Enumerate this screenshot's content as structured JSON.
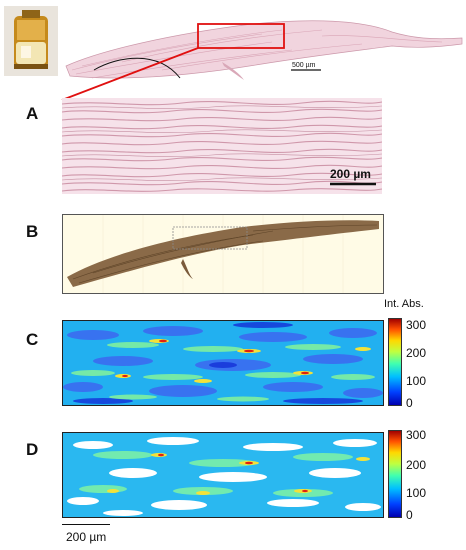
{
  "panels": {
    "a": {
      "letter": "A"
    },
    "b": {
      "letter": "B"
    },
    "c": {
      "letter": "C"
    },
    "d": {
      "letter": "D"
    }
  },
  "scale_bars": {
    "overview": "500 µm",
    "panel_a": "200 µm",
    "bottom": "200 µm"
  },
  "colorbar_c": {
    "title": "Int. Abs.",
    "ticks": [
      "300",
      "200",
      "100",
      "0"
    ]
  },
  "colorbar_d": {
    "ticks": [
      "300",
      "200",
      "100",
      "0"
    ]
  },
  "colors": {
    "highlight": "#e01010",
    "stain_pink": "#e8b8c8",
    "tissue_brown": "#8a6a48",
    "background_cream": "#fffbe6"
  }
}
